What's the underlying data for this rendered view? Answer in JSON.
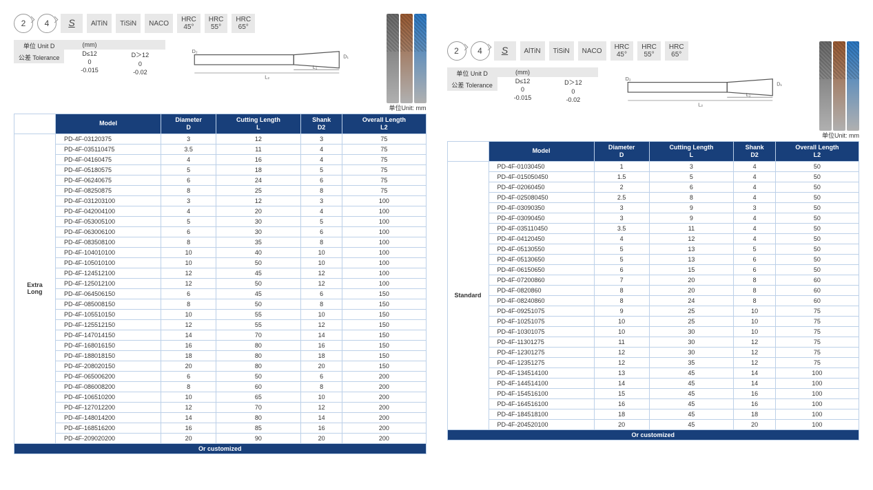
{
  "chips": {
    "flute2": "2",
    "flute4": "4",
    "s": "S",
    "coatings": [
      "AlTiN",
      "TiSiN",
      "NACO"
    ],
    "hrc": [
      "HRC\n45°",
      "HRC\n55°",
      "HRC\n65°"
    ]
  },
  "tolerance": {
    "unit_label": "单位 Unit D",
    "mm": "(mm)",
    "tol_label": "公差 Tolerance",
    "col1": "D≤12",
    "col2": "D＞12",
    "r1c1": "0",
    "r1c2": "0",
    "r2c1": "-0.015",
    "r2c2": "-0.02"
  },
  "unit_mm": "单位Unit: mm",
  "columns": [
    "Model",
    "Diameter\nD",
    "Cutting Length\nL",
    "Shank\nD2",
    "Overall Length\nL2"
  ],
  "footer": "Or customized",
  "left": {
    "category": "Extra\nLong",
    "rows": [
      [
        "PD-4F-03120375",
        "3",
        "12",
        "3",
        "75"
      ],
      [
        "PD-4F-035110475",
        "3.5",
        "11",
        "4",
        "75"
      ],
      [
        "PD-4F-04160475",
        "4",
        "16",
        "4",
        "75"
      ],
      [
        "PD-4F-05180575",
        "5",
        "18",
        "5",
        "75"
      ],
      [
        "PD-4F-06240675",
        "6",
        "24",
        "6",
        "75"
      ],
      [
        "PD-4F-08250875",
        "8",
        "25",
        "8",
        "75"
      ],
      [
        "PD-4F-031203100",
        "3",
        "12",
        "3",
        "100"
      ],
      [
        "PD-4F-042004100",
        "4",
        "20",
        "4",
        "100"
      ],
      [
        "PD-4F-053005100",
        "5",
        "30",
        "5",
        "100"
      ],
      [
        "PD-4F-063006100",
        "6",
        "30",
        "6",
        "100"
      ],
      [
        "PD-4F-083508100",
        "8",
        "35",
        "8",
        "100"
      ],
      [
        "PD-4F-104010100",
        "10",
        "40",
        "10",
        "100"
      ],
      [
        "PD-4F-105010100",
        "10",
        "50",
        "10",
        "100"
      ],
      [
        "PD-4F-124512100",
        "12",
        "45",
        "12",
        "100"
      ],
      [
        "PD-4F-125012100",
        "12",
        "50",
        "12",
        "100"
      ],
      [
        "PD-4F-064506150",
        "6",
        "45",
        "6",
        "150"
      ],
      [
        "PD-4F-085008150",
        "8",
        "50",
        "8",
        "150"
      ],
      [
        "PD-4F-105510150",
        "10",
        "55",
        "10",
        "150"
      ],
      [
        "PD-4F-125512150",
        "12",
        "55",
        "12",
        "150"
      ],
      [
        "PD-4F-147014150",
        "14",
        "70",
        "14",
        "150"
      ],
      [
        "PD-4F-168016150",
        "16",
        "80",
        "16",
        "150"
      ],
      [
        "PD-4F-188018150",
        "18",
        "80",
        "18",
        "150"
      ],
      [
        "PD-4F-208020150",
        "20",
        "80",
        "20",
        "150"
      ],
      [
        "PD-4F-065006200",
        "6",
        "50",
        "6",
        "200"
      ],
      [
        "PD-4F-086008200",
        "8",
        "60",
        "8",
        "200"
      ],
      [
        "PD-4F-106510200",
        "10",
        "65",
        "10",
        "200"
      ],
      [
        "PD-4F-127012200",
        "12",
        "70",
        "12",
        "200"
      ],
      [
        "PD-4F-148014200",
        "14",
        "80",
        "14",
        "200"
      ],
      [
        "PD-4F-168516200",
        "16",
        "85",
        "16",
        "200"
      ],
      [
        "PD-4F-209020200",
        "20",
        "90",
        "20",
        "200"
      ]
    ]
  },
  "right": {
    "category": "Standard",
    "rows": [
      [
        "PD-4F-01030450",
        "1",
        "3",
        "4",
        "50"
      ],
      [
        "PD-4F-015050450",
        "1.5",
        "5",
        "4",
        "50"
      ],
      [
        "PD-4F-02060450",
        "2",
        "6",
        "4",
        "50"
      ],
      [
        "PD-4F-025080450",
        "2.5",
        "8",
        "4",
        "50"
      ],
      [
        "PD-4F-03090350",
        "3",
        "9",
        "3",
        "50"
      ],
      [
        "PD-4F-03090450",
        "3",
        "9",
        "4",
        "50"
      ],
      [
        "PD-4F-035110450",
        "3.5",
        "11",
        "4",
        "50"
      ],
      [
        "PD-4F-04120450",
        "4",
        "12",
        "4",
        "50"
      ],
      [
        "PD-4F-05130550",
        "5",
        "13",
        "5",
        "50"
      ],
      [
        "PD-4F-05130650",
        "5",
        "13",
        "6",
        "50"
      ],
      [
        "PD-4F-06150650",
        "6",
        "15",
        "6",
        "50"
      ],
      [
        "PD-4F-07200860",
        "7",
        "20",
        "8",
        "60"
      ],
      [
        "PD-4F-0820860",
        "8",
        "20",
        "8",
        "60"
      ],
      [
        "PD-4F-08240860",
        "8",
        "24",
        "8",
        "60"
      ],
      [
        "PD-4F-09251075",
        "9",
        "25",
        "10",
        "75"
      ],
      [
        "PD-4F-10251075",
        "10",
        "25",
        "10",
        "75"
      ],
      [
        "PD-4F-10301075",
        "10",
        "30",
        "10",
        "75"
      ],
      [
        "PD-4F-11301275",
        "11",
        "30",
        "12",
        "75"
      ],
      [
        "PD-4F-12301275",
        "12",
        "30",
        "12",
        "75"
      ],
      [
        "PD-4F-12351275",
        "12",
        "35",
        "12",
        "75"
      ],
      [
        "PD-4F-134514100",
        "13",
        "45",
        "14",
        "100"
      ],
      [
        "PD-4F-144514100",
        "14",
        "45",
        "14",
        "100"
      ],
      [
        "PD-4F-154516100",
        "15",
        "45",
        "16",
        "100"
      ],
      [
        "PD-4F-164516100",
        "16",
        "45",
        "16",
        "100"
      ],
      [
        "PD-4F-184518100",
        "18",
        "45",
        "18",
        "100"
      ],
      [
        "PD-4F-204520100",
        "20",
        "45",
        "20",
        "100"
      ]
    ]
  },
  "tool_colors": [
    "#6a6a6a",
    "#9a5a32",
    "#2a78c4"
  ]
}
